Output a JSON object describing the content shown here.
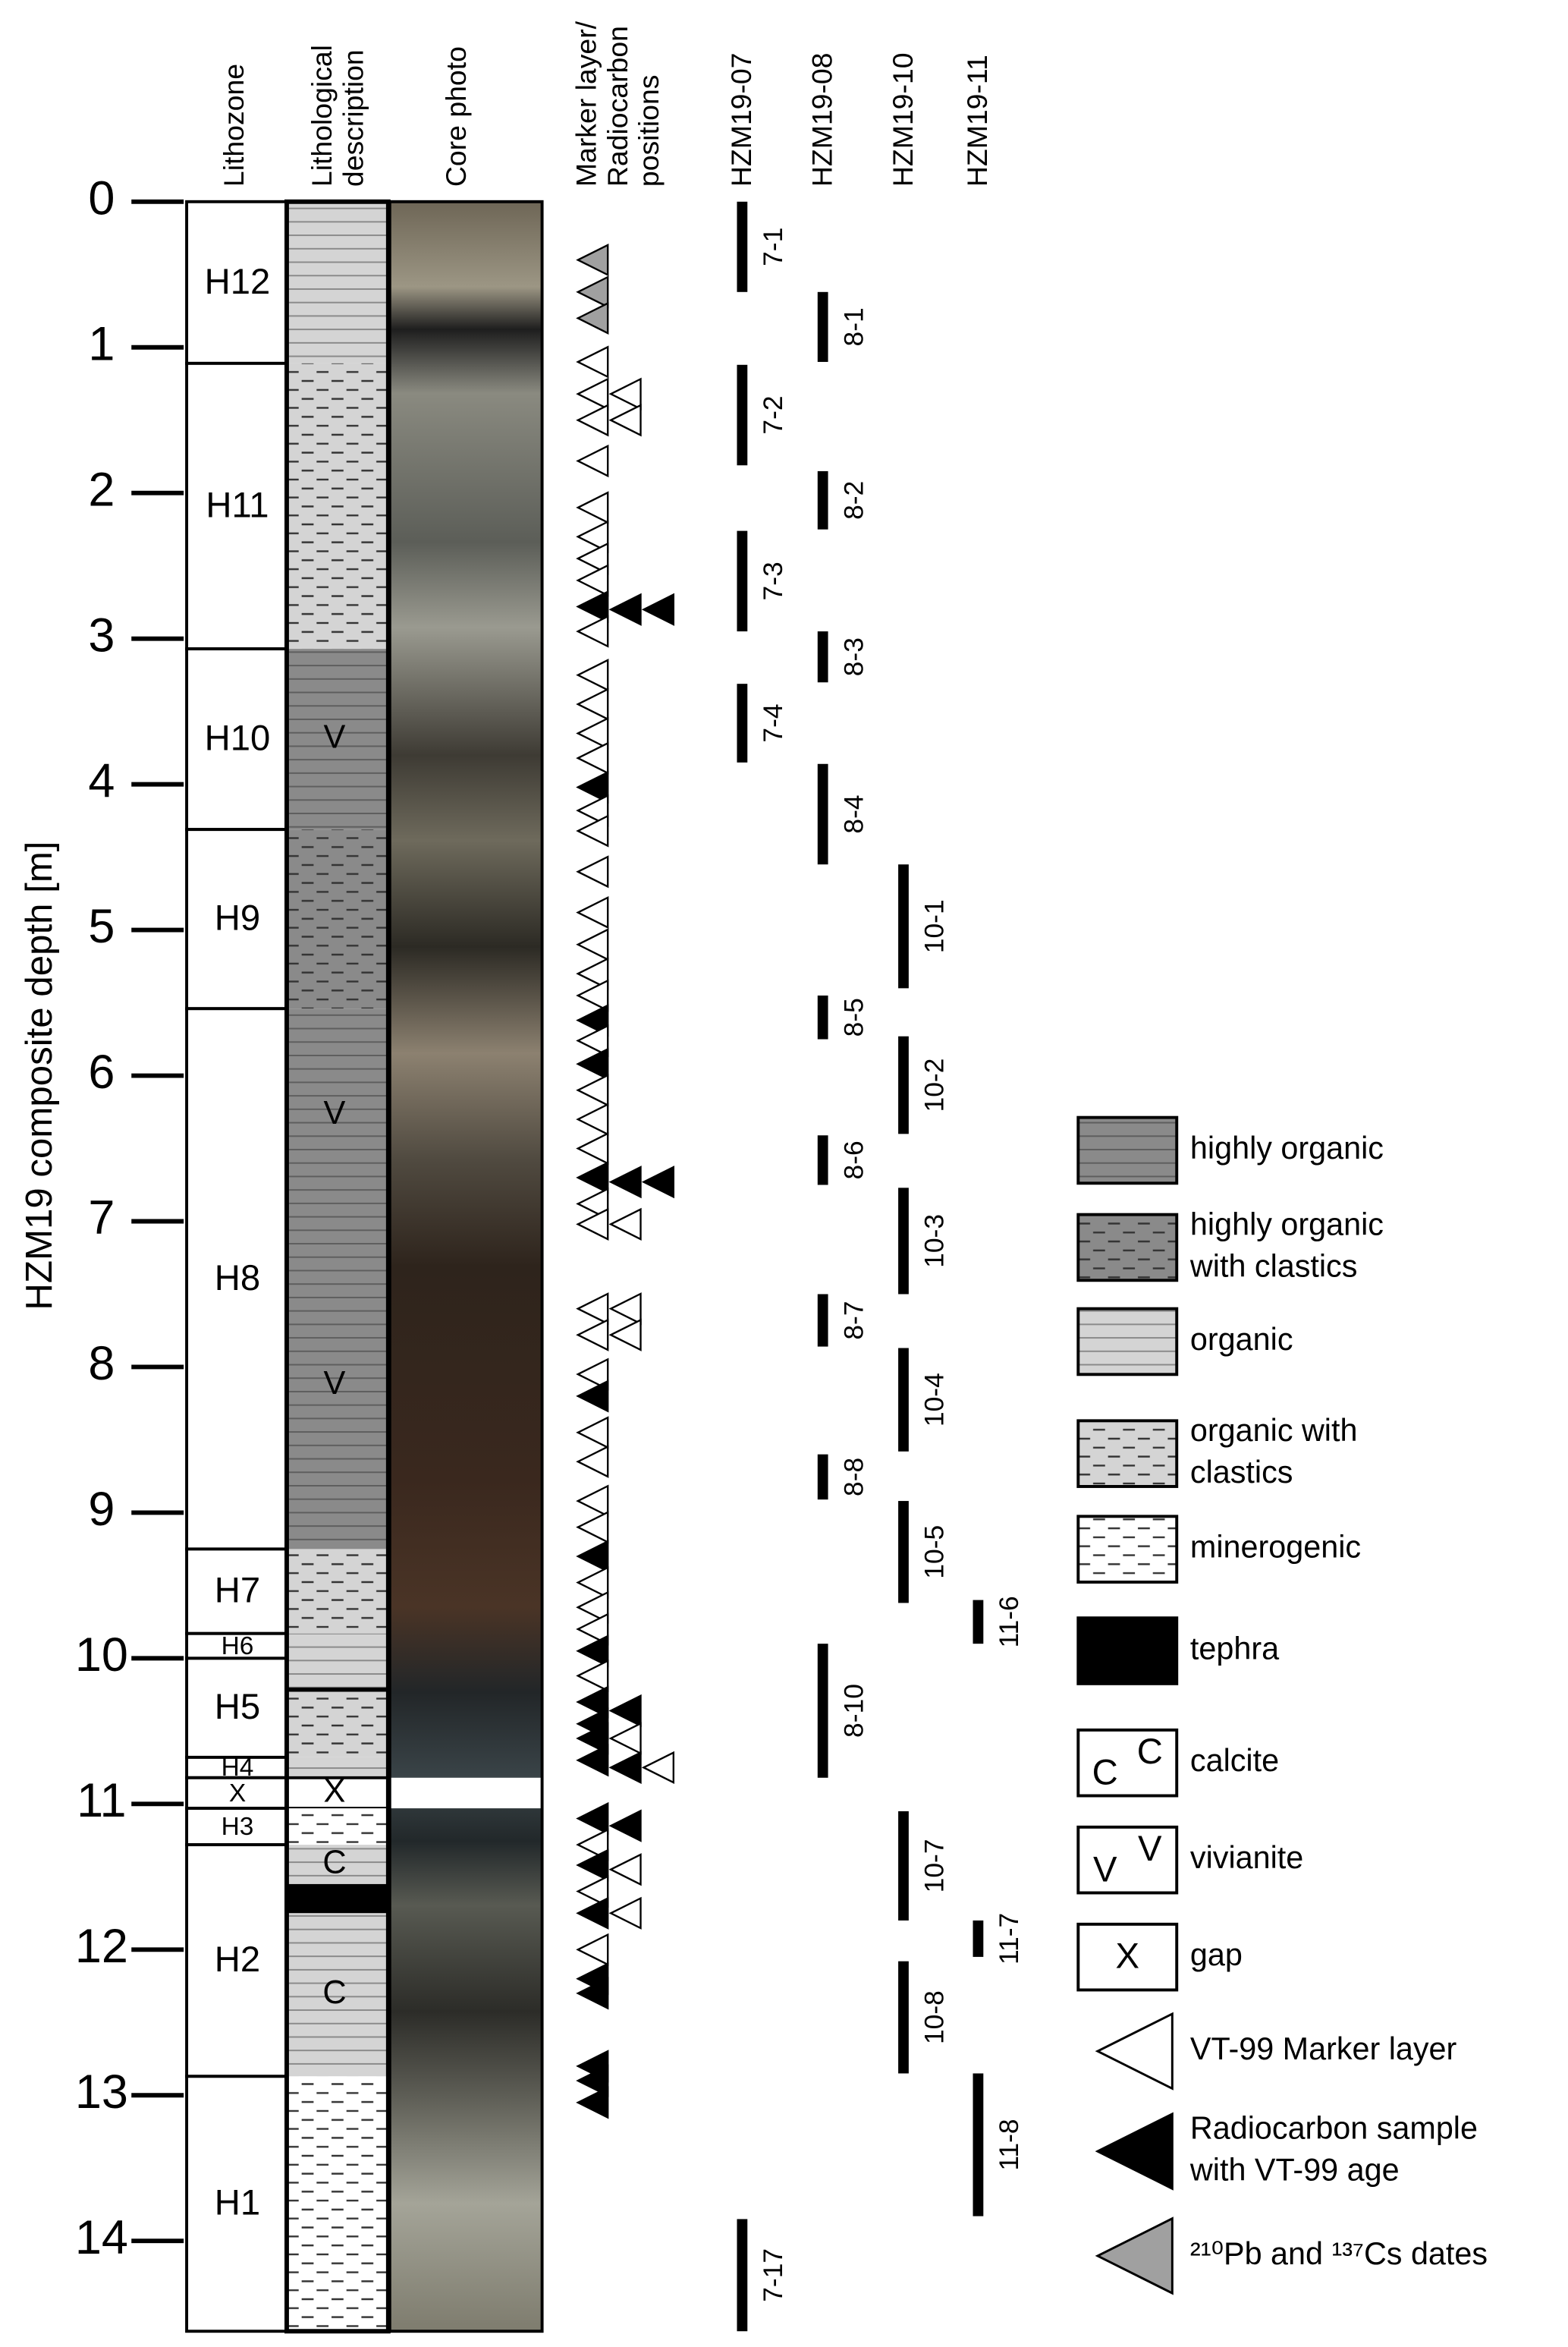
{
  "headers": {
    "lithozone": [
      "Lithozone"
    ],
    "description": [
      "Lithological",
      "description"
    ],
    "photo": [
      "Core photo"
    ],
    "markers": [
      "Marker layer/",
      "Radiocarbon",
      "positions"
    ]
  },
  "axis": {
    "label": "HZM19 composite depth [m]",
    "range": [
      0,
      14.62
    ],
    "ticks": [
      0,
      1,
      2,
      3,
      4,
      5,
      6,
      7,
      8,
      9,
      10,
      11,
      12,
      13,
      14
    ]
  },
  "lithozones": [
    {
      "label": "H12",
      "top": 0,
      "bottom": 1.11
    },
    {
      "label": "H11",
      "top": 1.11,
      "bottom": 3.07
    },
    {
      "label": "H10",
      "top": 3.07,
      "bottom": 4.31
    },
    {
      "label": "H9",
      "top": 4.31,
      "bottom": 5.54
    },
    {
      "label": "H8",
      "top": 5.54,
      "bottom": 9.25
    },
    {
      "label": "H7",
      "top": 9.25,
      "bottom": 9.83
    },
    {
      "label": "H6",
      "top": 9.83,
      "bottom": 10.0
    },
    {
      "label": "H5",
      "top": 10.0,
      "bottom": 10.68
    },
    {
      "label": "H4",
      "top": 10.68,
      "bottom": 10.82
    },
    {
      "label": "X",
      "top": 10.82,
      "bottom": 11.03
    },
    {
      "label": "H3",
      "top": 11.03,
      "bottom": 11.28
    },
    {
      "label": "H2",
      "top": 11.28,
      "bottom": 12.87
    },
    {
      "label": "H1",
      "top": 12.87,
      "bottom": 14.62
    }
  ],
  "units": [
    {
      "type": "organic",
      "top": 0,
      "bottom": 1.11
    },
    {
      "type": "organic_clastics",
      "top": 1.11,
      "bottom": 3.07
    },
    {
      "type": "highly_organic",
      "top": 3.07,
      "bottom": 4.31,
      "symbol": "V"
    },
    {
      "type": "highly_organic_clastics",
      "top": 4.31,
      "bottom": 5.54
    },
    {
      "type": "highly_organic",
      "top": 5.54,
      "bottom": 7.0,
      "symbol": "V"
    },
    {
      "type": "highly_organic",
      "top": 7.0,
      "bottom": 9.25,
      "symbol": "V"
    },
    {
      "type": "organic_clastics",
      "top": 9.25,
      "bottom": 9.83
    },
    {
      "type": "organic",
      "top": 9.83,
      "bottom": 10.2
    },
    {
      "type": "tephra",
      "top": 10.2,
      "bottom": 10.23
    },
    {
      "type": "organic_clastics",
      "top": 10.23,
      "bottom": 10.68
    },
    {
      "type": "organic",
      "top": 10.68,
      "bottom": 10.82
    },
    {
      "type": "gap",
      "top": 10.82,
      "bottom": 11.03,
      "symbol": "X"
    },
    {
      "type": "minerogenic",
      "top": 11.03,
      "bottom": 11.28
    },
    {
      "type": "organic",
      "top": 11.28,
      "bottom": 11.55,
      "symbol": "C"
    },
    {
      "type": "tephra",
      "top": 11.55,
      "bottom": 11.75
    },
    {
      "type": "organic",
      "top": 11.75,
      "bottom": 12.87,
      "symbol": "C"
    },
    {
      "type": "minerogenic",
      "top": 12.87,
      "bottom": 14.62
    }
  ],
  "cores": [
    {
      "name": "HZM19-07",
      "sections": [
        {
          "label": "7-1",
          "top": 0,
          "bottom": 0.62
        },
        {
          "label": "7-2",
          "top": 1.12,
          "bottom": 1.81
        },
        {
          "label": "7-3",
          "top": 2.26,
          "bottom": 2.95
        },
        {
          "label": "7-4",
          "top": 3.31,
          "bottom": 3.85
        },
        {
          "label": "7-17",
          "top": 13.85,
          "bottom": 14.62
        }
      ]
    },
    {
      "name": "HZM19-08",
      "sections": [
        {
          "label": "8-1",
          "top": 0.62,
          "bottom": 1.1
        },
        {
          "label": "8-2",
          "top": 1.85,
          "bottom": 2.25
        },
        {
          "label": "8-3",
          "top": 2.95,
          "bottom": 3.3
        },
        {
          "label": "8-4",
          "top": 3.86,
          "bottom": 4.55
        },
        {
          "label": "8-5",
          "top": 5.45,
          "bottom": 5.75
        },
        {
          "label": "8-6",
          "top": 6.41,
          "bottom": 6.75
        },
        {
          "label": "8-7",
          "top": 7.5,
          "bottom": 7.86
        },
        {
          "label": "8-8",
          "top": 8.6,
          "bottom": 8.91
        },
        {
          "label": "8-10",
          "top": 9.9,
          "bottom": 10.82
        }
      ]
    },
    {
      "name": "HZM19-10",
      "sections": [
        {
          "label": "10-1",
          "top": 4.55,
          "bottom": 5.4
        },
        {
          "label": "10-2",
          "top": 5.73,
          "bottom": 6.4
        },
        {
          "label": "10-3",
          "top": 6.77,
          "bottom": 7.5
        },
        {
          "label": "10-4",
          "top": 7.87,
          "bottom": 8.58
        },
        {
          "label": "10-5",
          "top": 8.92,
          "bottom": 9.62
        },
        {
          "label": "10-7",
          "top": 11.05,
          "bottom": 11.8
        },
        {
          "label": "10-8",
          "top": 12.08,
          "bottom": 12.85
        }
      ]
    },
    {
      "name": "HZM19-11",
      "sections": [
        {
          "label": "11-6",
          "top": 9.6,
          "bottom": 9.9
        },
        {
          "label": "11-7",
          "top": 11.8,
          "bottom": 12.05
        },
        {
          "label": "11-8",
          "top": 12.85,
          "bottom": 13.83
        }
      ]
    }
  ],
  "markers": [
    {
      "depth": 0.4,
      "type": "pb_cs",
      "column": 0
    },
    {
      "depth": 0.62,
      "type": "pb_cs",
      "column": 0
    },
    {
      "depth": 0.8,
      "type": "pb_cs",
      "column": 0
    },
    {
      "depth": 1.1,
      "type": "vt99",
      "column": 0
    },
    {
      "depth": 1.32,
      "type": "vt99",
      "column": 0
    },
    {
      "depth": 1.32,
      "type": "vt99",
      "column": 1
    },
    {
      "depth": 1.5,
      "type": "vt99",
      "column": 0
    },
    {
      "depth": 1.5,
      "type": "vt99",
      "column": 1
    },
    {
      "depth": 1.78,
      "type": "vt99",
      "column": 0
    },
    {
      "depth": 2.1,
      "type": "vt99",
      "column": 0
    },
    {
      "depth": 2.3,
      "type": "vt99",
      "column": 0
    },
    {
      "depth": 2.45,
      "type": "vt99",
      "column": 0
    },
    {
      "depth": 2.6,
      "type": "vt99",
      "column": 0
    },
    {
      "depth": 2.78,
      "type": "radiocarbon",
      "column": 0
    },
    {
      "depth": 2.8,
      "type": "radiocarbon",
      "column": 1
    },
    {
      "depth": 2.8,
      "type": "radiocarbon",
      "column": 2
    },
    {
      "depth": 2.95,
      "type": "vt99",
      "column": 0
    },
    {
      "depth": 3.25,
      "type": "vt99",
      "column": 0
    },
    {
      "depth": 3.45,
      "type": "vt99",
      "column": 0
    },
    {
      "depth": 3.65,
      "type": "vt99",
      "column": 0
    },
    {
      "depth": 3.82,
      "type": "vt99",
      "column": 0
    },
    {
      "depth": 4.02,
      "type": "radiocarbon",
      "column": 0
    },
    {
      "depth": 4.18,
      "type": "vt99",
      "column": 0
    },
    {
      "depth": 4.32,
      "type": "vt99",
      "column": 0
    },
    {
      "depth": 4.6,
      "type": "vt99",
      "column": 0
    },
    {
      "depth": 4.88,
      "type": "vt99",
      "column": 0
    },
    {
      "depth": 5.1,
      "type": "vt99",
      "column": 0
    },
    {
      "depth": 5.3,
      "type": "vt99",
      "column": 0
    },
    {
      "depth": 5.45,
      "type": "vt99",
      "column": 0
    },
    {
      "depth": 5.62,
      "type": "radiocarbon",
      "column": 0
    },
    {
      "depth": 5.76,
      "type": "vt99",
      "column": 0
    },
    {
      "depth": 5.92,
      "type": "radiocarbon",
      "column": 0
    },
    {
      "depth": 6.1,
      "type": "vt99",
      "column": 0
    },
    {
      "depth": 6.3,
      "type": "vt99",
      "column": 0
    },
    {
      "depth": 6.5,
      "type": "vt99",
      "column": 0
    },
    {
      "depth": 6.7,
      "type": "radiocarbon",
      "column": 0
    },
    {
      "depth": 6.73,
      "type": "radiocarbon",
      "column": 1
    },
    {
      "depth": 6.73,
      "type": "radiocarbon",
      "column": 2
    },
    {
      "depth": 6.88,
      "type": "vt99",
      "column": 0
    },
    {
      "depth": 7.02,
      "type": "vt99",
      "column": 0
    },
    {
      "depth": 7.02,
      "type": "vt99",
      "column": 1
    },
    {
      "depth": 7.6,
      "type": "vt99",
      "column": 0
    },
    {
      "depth": 7.6,
      "type": "vt99",
      "column": 1
    },
    {
      "depth": 7.78,
      "type": "vt99",
      "column": 0
    },
    {
      "depth": 7.78,
      "type": "vt99",
      "column": 1
    },
    {
      "depth": 8.05,
      "type": "vt99",
      "column": 0
    },
    {
      "depth": 8.2,
      "type": "radiocarbon",
      "column": 0
    },
    {
      "depth": 8.45,
      "type": "vt99",
      "column": 0
    },
    {
      "depth": 8.65,
      "type": "vt99",
      "column": 0
    },
    {
      "depth": 8.92,
      "type": "vt99",
      "column": 0
    },
    {
      "depth": 9.1,
      "type": "vt99",
      "column": 0
    },
    {
      "depth": 9.3,
      "type": "radiocarbon",
      "column": 0
    },
    {
      "depth": 9.48,
      "type": "vt99",
      "column": 0
    },
    {
      "depth": 9.65,
      "type": "vt99",
      "column": 0
    },
    {
      "depth": 9.8,
      "type": "vt99",
      "column": 0
    },
    {
      "depth": 9.95,
      "type": "radiocarbon",
      "column": 0
    },
    {
      "depth": 10.12,
      "type": "vt99",
      "column": 0
    },
    {
      "depth": 10.3,
      "type": "radiocarbon",
      "column": 0
    },
    {
      "depth": 10.36,
      "type": "radiocarbon",
      "column": 1
    },
    {
      "depth": 10.45,
      "type": "radiocarbon",
      "column": 0
    },
    {
      "depth": 10.55,
      "type": "radiocarbon",
      "column": 0
    },
    {
      "depth": 10.55,
      "type": "vt99",
      "column": 1
    },
    {
      "depth": 10.7,
      "type": "radiocarbon",
      "column": 0
    },
    {
      "depth": 10.75,
      "type": "radiocarbon",
      "column": 1
    },
    {
      "depth": 10.75,
      "type": "vt99",
      "column": 2
    },
    {
      "depth": 11.1,
      "type": "radiocarbon",
      "column": 0
    },
    {
      "depth": 11.15,
      "type": "radiocarbon",
      "column": 1
    },
    {
      "depth": 11.28,
      "type": "vt99",
      "column": 0
    },
    {
      "depth": 11.42,
      "type": "radiocarbon",
      "column": 0
    },
    {
      "depth": 11.45,
      "type": "vt99",
      "column": 1
    },
    {
      "depth": 11.6,
      "type": "vt99",
      "column": 0
    },
    {
      "depth": 11.75,
      "type": "radiocarbon",
      "column": 0
    },
    {
      "depth": 11.75,
      "type": "vt99",
      "column": 1
    },
    {
      "depth": 12.0,
      "type": "vt99",
      "column": 0
    },
    {
      "depth": 12.2,
      "type": "radiocarbon",
      "column": 0
    },
    {
      "depth": 12.3,
      "type": "radiocarbon",
      "column": 0
    },
    {
      "depth": 12.8,
      "type": "radiocarbon",
      "column": 0
    },
    {
      "depth": 12.9,
      "type": "radiocarbon",
      "column": 0
    },
    {
      "depth": 13.05,
      "type": "radiocarbon",
      "column": 0
    }
  ],
  "legend": [
    {
      "type": "highly_organic",
      "label": [
        "highly organic"
      ]
    },
    {
      "type": "highly_organic_clastics",
      "label": [
        "highly organic",
        "with clastics"
      ]
    },
    {
      "type": "organic",
      "label": [
        "organic"
      ]
    },
    {
      "type": "organic_clastics",
      "label": [
        "organic with",
        "clastics"
      ]
    },
    {
      "type": "minerogenic",
      "label": [
        "minerogenic"
      ]
    },
    {
      "type": "tephra",
      "label": [
        "tephra"
      ]
    },
    {
      "type": "calcite",
      "label": [
        "calcite"
      ],
      "symbols": [
        "C",
        "C"
      ]
    },
    {
      "type": "vivianite",
      "label": [
        "vivianite"
      ],
      "symbols": [
        "V",
        "V"
      ]
    },
    {
      "type": "gap",
      "label": [
        "gap"
      ],
      "symbols": [
        "X"
      ]
    },
    {
      "type": "vt99",
      "label": [
        "VT-99 Marker layer"
      ]
    },
    {
      "type": "radiocarbon",
      "label": [
        "Radiocarbon sample",
        "with VT-99 age"
      ]
    },
    {
      "type": "pb_cs",
      "label": [
        "²¹⁰Pb and ¹³⁷Cs dates"
      ]
    }
  ]
}
